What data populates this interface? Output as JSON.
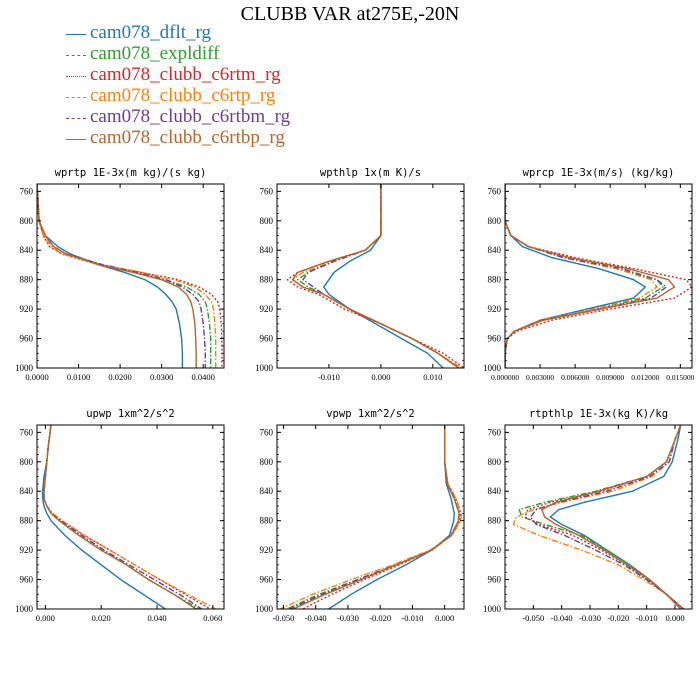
{
  "title": "CLUBB VAR at275E,-20N",
  "legend": [
    {
      "name": "cam078_dflt_rg",
      "color": "#1f77b4",
      "dash": "solid"
    },
    {
      "name": "cam078_expldiff",
      "color": "#2ca02c",
      "dash": "dashdot"
    },
    {
      "name": "cam078_clubb_c6rtm_rg",
      "color": "#d62728",
      "dash": "dotted"
    },
    {
      "name": "cam078_clubb_c6rtp_rg",
      "color": "#ff7f0e",
      "dash": "dashdot"
    },
    {
      "name": "cam078_clubb_c6rtbm_rg",
      "color": "#6a3d9a",
      "dash": "dashdot"
    },
    {
      "name": "cam078_clubb_c6rtbp_rg",
      "color": "#b5652b",
      "dash": "solid"
    }
  ],
  "chart_data": [
    {
      "type": "line",
      "title": "wprtp  1E-3x(m kg)/(s kg)",
      "xlim": [
        0.0,
        0.045
      ],
      "ylim": [
        1000,
        750
      ],
      "xticks": [
        0.0,
        0.01,
        0.02,
        0.03,
        0.04
      ],
      "xtick_labels": [
        "0.0000",
        "0.0100",
        "0.0200",
        "0.0300",
        "0.0400"
      ],
      "yticks": [
        760,
        800,
        840,
        880,
        920,
        960,
        1000
      ],
      "ytick_labels": [
        "760",
        "800",
        "840",
        "880",
        "920",
        "960",
        "1000"
      ],
      "y": [
        750,
        800,
        820,
        835,
        845,
        860,
        870,
        880,
        890,
        900,
        910,
        920,
        940,
        960,
        980,
        1000
      ],
      "series": [
        {
          "name": "cam078_dflt_rg",
          "values": [
            0.0,
            0.0005,
            0.002,
            0.005,
            0.008,
            0.015,
            0.021,
            0.026,
            0.029,
            0.031,
            0.0325,
            0.0335,
            0.0343,
            0.0348,
            0.035,
            0.035
          ]
        },
        {
          "name": "cam078_expldiff",
          "values": [
            0.0,
            0.0005,
            0.002,
            0.004,
            0.007,
            0.016,
            0.024,
            0.031,
            0.036,
            0.039,
            0.0405,
            0.041,
            0.0415,
            0.0418,
            0.0418,
            0.0418
          ]
        },
        {
          "name": "cam078_clubb_c6rtm_rg",
          "values": [
            0.0,
            0.0005,
            0.0015,
            0.003,
            0.006,
            0.015,
            0.025,
            0.034,
            0.039,
            0.042,
            0.0435,
            0.044,
            0.0443,
            0.0445,
            0.0445,
            0.0445
          ]
        },
        {
          "name": "cam078_clubb_c6rtp_rg",
          "values": [
            0.0,
            0.0005,
            0.0015,
            0.0035,
            0.006,
            0.016,
            0.025,
            0.033,
            0.038,
            0.0405,
            0.042,
            0.0425,
            0.0428,
            0.043,
            0.043,
            0.043
          ]
        },
        {
          "name": "cam078_clubb_c6rtbm_rg",
          "values": [
            0.0,
            0.0005,
            0.002,
            0.004,
            0.007,
            0.016,
            0.024,
            0.031,
            0.035,
            0.0375,
            0.039,
            0.0395,
            0.04,
            0.0403,
            0.0405,
            0.0405
          ]
        },
        {
          "name": "cam078_clubb_c6rtbp_rg",
          "values": [
            0.0,
            0.0005,
            0.002,
            0.004,
            0.007,
            0.015,
            0.023,
            0.03,
            0.034,
            0.036,
            0.037,
            0.0375,
            0.038,
            0.0382,
            0.0383,
            0.0383
          ]
        }
      ]
    },
    {
      "type": "line",
      "title": "wpthlp  1x(m K)/s",
      "xlim": [
        -0.02,
        0.016
      ],
      "ylim": [
        1000,
        750
      ],
      "xticks": [
        -0.01,
        0.0,
        0.01
      ],
      "xtick_labels": [
        "-0.010",
        "0.000",
        "0.010"
      ],
      "yticks": [
        760,
        800,
        840,
        880,
        920,
        960,
        1000
      ],
      "ytick_labels": [
        "760",
        "800",
        "840",
        "880",
        "920",
        "960",
        "1000"
      ],
      "y": [
        750,
        800,
        820,
        840,
        855,
        870,
        880,
        890,
        900,
        920,
        940,
        960,
        980,
        1000
      ],
      "series": [
        {
          "name": "cam078_dflt_rg",
          "values": [
            0.0,
            0.0,
            0.0,
            -0.002,
            -0.006,
            -0.009,
            -0.01,
            -0.011,
            -0.01,
            -0.006,
            -0.001,
            0.004,
            0.009,
            0.012
          ]
        },
        {
          "name": "cam078_expldiff",
          "values": [
            0.0,
            0.0,
            0.0,
            -0.003,
            -0.009,
            -0.014,
            -0.016,
            -0.014,
            -0.011,
            -0.006,
            0.0,
            0.006,
            0.011,
            0.015
          ]
        },
        {
          "name": "cam078_clubb_c6rtm_rg",
          "values": [
            0.0,
            0.0,
            0.0,
            -0.003,
            -0.01,
            -0.016,
            -0.018,
            -0.016,
            -0.012,
            -0.007,
            0.0,
            0.006,
            0.012,
            0.016
          ]
        },
        {
          "name": "cam078_clubb_c6rtp_rg",
          "values": [
            0.0,
            0.0,
            0.0,
            -0.003,
            -0.009,
            -0.015,
            -0.017,
            -0.015,
            -0.011,
            -0.006,
            0.0,
            0.006,
            0.011,
            0.0155
          ]
        },
        {
          "name": "cam078_clubb_c6rtbm_rg",
          "values": [
            0.0,
            0.0,
            0.0,
            -0.003,
            -0.009,
            -0.014,
            -0.015,
            -0.013,
            -0.011,
            -0.006,
            0.0,
            0.006,
            0.011,
            0.015
          ]
        },
        {
          "name": "cam078_clubb_c6rtbp_rg",
          "values": [
            0.0,
            0.0,
            0.0,
            -0.003,
            -0.01,
            -0.016,
            -0.017,
            -0.015,
            -0.011,
            -0.006,
            0.0,
            0.006,
            0.011,
            0.015
          ]
        }
      ]
    },
    {
      "type": "line",
      "title": "wprcp  1E-3x(m/s) (kg/kg)",
      "xlim": [
        0.0,
        0.016
      ],
      "ylim": [
        1000,
        750
      ],
      "xticks": [
        0.0,
        0.003,
        0.006,
        0.009,
        0.012,
        0.015
      ],
      "xtick_labels": [
        "0.000000",
        "0.003000",
        "0.006000",
        "0.009000",
        "0.012000",
        "0.015000"
      ],
      "yticks": [
        760,
        800,
        840,
        880,
        920,
        960,
        1000
      ],
      "ytick_labels": [
        "760",
        "800",
        "840",
        "880",
        "920",
        "960",
        "1000"
      ],
      "y": [
        750,
        800,
        820,
        835,
        850,
        865,
        880,
        890,
        905,
        920,
        935,
        950,
        960,
        980,
        1000
      ],
      "series": [
        {
          "name": "cam078_dflt_rg",
          "values": [
            0.0,
            0.0,
            0.0005,
            0.0015,
            0.004,
            0.008,
            0.011,
            0.012,
            0.011,
            0.007,
            0.003,
            0.0008,
            0.0002,
            0.0,
            0.0
          ]
        },
        {
          "name": "cam078_expldiff",
          "values": [
            0.0,
            0.0,
            0.0005,
            0.002,
            0.005,
            0.0095,
            0.013,
            0.0135,
            0.012,
            0.0075,
            0.003,
            0.0008,
            0.0002,
            0.0,
            0.0
          ]
        },
        {
          "name": "cam078_clubb_c6rtm_rg",
          "values": [
            0.0,
            0.0,
            0.0005,
            0.002,
            0.006,
            0.011,
            0.0155,
            0.016,
            0.0145,
            0.009,
            0.004,
            0.001,
            0.0002,
            0.0,
            0.0
          ]
        },
        {
          "name": "cam078_clubb_c6rtp_rg",
          "values": [
            0.0,
            0.0,
            0.0005,
            0.002,
            0.005,
            0.0095,
            0.0125,
            0.013,
            0.0115,
            0.0075,
            0.003,
            0.0008,
            0.0002,
            0.0,
            0.0
          ]
        },
        {
          "name": "cam078_clubb_c6rtbm_rg",
          "values": [
            0.0,
            0.0,
            0.0005,
            0.002,
            0.005,
            0.01,
            0.013,
            0.0138,
            0.0125,
            0.008,
            0.0032,
            0.0008,
            0.0002,
            0.0,
            0.0
          ]
        },
        {
          "name": "cam078_clubb_c6rtbp_rg",
          "values": [
            0.0,
            0.0,
            0.0005,
            0.002,
            0.0055,
            0.0105,
            0.014,
            0.0145,
            0.013,
            0.0082,
            0.0033,
            0.0008,
            0.0002,
            0.0,
            0.0
          ]
        }
      ]
    },
    {
      "type": "line",
      "title": "upwp  1xm^2/s^2",
      "xlim": [
        -0.003,
        0.064
      ],
      "ylim": [
        1000,
        750
      ],
      "xticks": [
        0.0,
        0.02,
        0.04,
        0.06
      ],
      "xtick_labels": [
        "0.000",
        "0.020",
        "0.040",
        "0.060"
      ],
      "yticks": [
        760,
        800,
        840,
        880,
        920,
        960,
        1000
      ],
      "ytick_labels": [
        "760",
        "800",
        "840",
        "880",
        "920",
        "960",
        "1000"
      ],
      "y": [
        750,
        780,
        800,
        820,
        840,
        850,
        860,
        870,
        880,
        900,
        920,
        940,
        960,
        980,
        1000
      ],
      "series": [
        {
          "name": "cam078_dflt_rg",
          "values": [
            0.002,
            0.001,
            0.0005,
            -0.0005,
            -0.001,
            -0.001,
            -0.0005,
            0.0005,
            0.002,
            0.007,
            0.013,
            0.02,
            0.027,
            0.035,
            0.043
          ]
        },
        {
          "name": "cam078_expldiff",
          "values": [
            0.002,
            0.001,
            0.0005,
            0.0,
            -0.0005,
            -0.0005,
            0.0005,
            0.002,
            0.005,
            0.012,
            0.02,
            0.029,
            0.037,
            0.046,
            0.055
          ]
        },
        {
          "name": "cam078_clubb_c6rtm_rg",
          "values": [
            0.002,
            0.001,
            0.0005,
            0.0,
            -0.0005,
            -0.0005,
            0.0005,
            0.0025,
            0.006,
            0.014,
            0.023,
            0.032,
            0.041,
            0.05,
            0.059
          ]
        },
        {
          "name": "cam078_clubb_c6rtp_rg",
          "values": [
            0.002,
            0.001,
            0.0005,
            0.0,
            -0.0005,
            -0.0005,
            0.0005,
            0.0025,
            0.006,
            0.014,
            0.023,
            0.032,
            0.041,
            0.051,
            0.061
          ]
        },
        {
          "name": "cam078_clubb_c6rtbm_rg",
          "values": [
            0.002,
            0.001,
            0.0005,
            0.0,
            -0.0005,
            -0.0005,
            0.0005,
            0.002,
            0.0055,
            0.013,
            0.021,
            0.03,
            0.039,
            0.048,
            0.056
          ]
        },
        {
          "name": "cam078_clubb_c6rtbp_rg",
          "values": [
            0.002,
            0.001,
            0.0005,
            0.0,
            -0.0005,
            -0.0005,
            0.0005,
            0.002,
            0.005,
            0.012,
            0.02,
            0.029,
            0.037,
            0.046,
            0.054
          ]
        }
      ]
    },
    {
      "type": "line",
      "title": "vpwp  1xm^2/s^2",
      "xlim": [
        -0.052,
        0.006
      ],
      "ylim": [
        1000,
        750
      ],
      "xticks": [
        -0.05,
        -0.04,
        -0.03,
        -0.02,
        -0.01,
        0.0
      ],
      "xtick_labels": [
        "-0.050",
        "-0.040",
        "-0.030",
        "-0.020",
        "-0.010",
        "0.000"
      ],
      "yticks": [
        760,
        800,
        840,
        880,
        920,
        960,
        1000
      ],
      "ytick_labels": [
        "760",
        "800",
        "840",
        "880",
        "920",
        "960",
        "1000"
      ],
      "y": [
        750,
        800,
        830,
        850,
        870,
        880,
        900,
        920,
        940,
        960,
        980,
        1000
      ],
      "series": [
        {
          "name": "cam078_dflt_rg",
          "values": [
            0.0,
            0.0,
            0.0005,
            0.002,
            0.003,
            0.0028,
            0.0015,
            -0.004,
            -0.012,
            -0.021,
            -0.029,
            -0.036
          ]
        },
        {
          "name": "cam078_expldiff",
          "values": [
            0.0,
            0.0,
            0.0008,
            0.003,
            0.0045,
            0.0043,
            0.002,
            -0.004,
            -0.015,
            -0.027,
            -0.039,
            -0.049
          ]
        },
        {
          "name": "cam078_clubb_c6rtm_rg",
          "values": [
            0.0,
            0.0,
            0.001,
            0.0035,
            0.005,
            0.0048,
            0.0022,
            -0.004,
            -0.014,
            -0.025,
            -0.035,
            -0.044
          ]
        },
        {
          "name": "cam078_clubb_c6rtp_rg",
          "values": [
            0.0,
            0.0,
            0.001,
            0.0035,
            0.0052,
            0.005,
            0.0022,
            -0.0045,
            -0.016,
            -0.029,
            -0.041,
            -0.051
          ]
        },
        {
          "name": "cam078_clubb_c6rtbm_rg",
          "values": [
            0.0,
            0.0,
            0.0008,
            0.003,
            0.0045,
            0.0043,
            0.002,
            -0.004,
            -0.015,
            -0.027,
            -0.038,
            -0.048
          ]
        },
        {
          "name": "cam078_clubb_c6rtbp_rg",
          "values": [
            0.0,
            0.0,
            0.0008,
            0.003,
            0.0045,
            0.0043,
            0.002,
            -0.004,
            -0.015,
            -0.026,
            -0.037,
            -0.047
          ]
        }
      ]
    },
    {
      "type": "line",
      "title": "rtpthlp  1E-3x(kg K)/kg",
      "xlim": [
        -0.06,
        0.006
      ],
      "ylim": [
        1000,
        750
      ],
      "xticks": [
        -0.05,
        -0.04,
        -0.03,
        -0.02,
        -0.01,
        0.0
      ],
      "xtick_labels": [
        "-0.050",
        "-0.040",
        "-0.030",
        "-0.020",
        "-0.010",
        "0.000"
      ],
      "yticks": [
        760,
        800,
        840,
        880,
        920,
        960,
        1000
      ],
      "ytick_labels": [
        "760",
        "800",
        "840",
        "880",
        "920",
        "960",
        "1000"
      ],
      "y": [
        750,
        770,
        800,
        820,
        840,
        855,
        865,
        875,
        885,
        900,
        920,
        940,
        960,
        980,
        1000
      ],
      "series": [
        {
          "name": "cam078_dflt_rg",
          "values": [
            0.002,
            0.001,
            -0.001,
            -0.004,
            -0.015,
            -0.032,
            -0.041,
            -0.044,
            -0.04,
            -0.032,
            -0.024,
            -0.016,
            -0.009,
            -0.003,
            0.002
          ]
        },
        {
          "name": "cam078_expldiff",
          "values": [
            0.002,
            0.0,
            -0.003,
            -0.01,
            -0.028,
            -0.046,
            -0.055,
            -0.054,
            -0.046,
            -0.033,
            -0.024,
            -0.016,
            -0.009,
            -0.003,
            0.003
          ]
        },
        {
          "name": "cam078_clubb_c6rtm_rg",
          "values": [
            0.002,
            0.0,
            -0.003,
            -0.01,
            -0.026,
            -0.044,
            -0.052,
            -0.053,
            -0.048,
            -0.036,
            -0.026,
            -0.017,
            -0.01,
            -0.003,
            0.003
          ]
        },
        {
          "name": "cam078_clubb_c6rtp_rg",
          "values": [
            0.002,
            0.0,
            -0.002,
            -0.008,
            -0.022,
            -0.04,
            -0.05,
            -0.056,
            -0.057,
            -0.048,
            -0.033,
            -0.02,
            -0.011,
            -0.003,
            0.003
          ]
        },
        {
          "name": "cam078_clubb_c6rtbm_rg",
          "values": [
            0.002,
            0.0,
            -0.002,
            -0.009,
            -0.024,
            -0.041,
            -0.049,
            -0.051,
            -0.049,
            -0.039,
            -0.028,
            -0.018,
            -0.01,
            -0.003,
            0.003
          ]
        },
        {
          "name": "cam078_clubb_c6rtbp_rg",
          "values": [
            0.002,
            0.0,
            -0.003,
            -0.01,
            -0.027,
            -0.042,
            -0.047,
            -0.046,
            -0.042,
            -0.034,
            -0.025,
            -0.017,
            -0.009,
            -0.003,
            0.002
          ]
        }
      ]
    }
  ]
}
